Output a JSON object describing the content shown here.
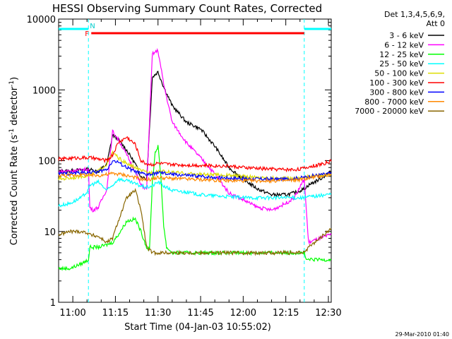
{
  "chart_data": {
    "type": "line",
    "title": "HESSI Observing Summary Count Rates, Corrected",
    "xlabel": "Start Time (04-Jan-03 10:55:02)",
    "ylabel_main": "Corrected Count Rate (s",
    "ylabel_sup1": "-1",
    "ylabel_mid": " detector",
    "ylabel_sup2": "-1",
    "ylabel_end": ")",
    "yscale": "log",
    "ylim": [
      1,
      10000
    ],
    "xlim_min": [
      0,
      96
    ],
    "y_ticks": [
      {
        "value": 1,
        "label": "1"
      },
      {
        "value": 10,
        "label": "10"
      },
      {
        "value": 100,
        "label": "100"
      },
      {
        "value": 1000,
        "label": "1000"
      },
      {
        "value": 10000,
        "label": "10000"
      }
    ],
    "x_ticks": [
      {
        "t": 5,
        "label": "11:00"
      },
      {
        "t": 20,
        "label": "11:15"
      },
      {
        "t": 35,
        "label": "11:30"
      },
      {
        "t": 50,
        "label": "11:45"
      },
      {
        "t": 65,
        "label": "12:00"
      },
      {
        "t": 80,
        "label": "12:15"
      },
      {
        "t": 95,
        "label": "12:30"
      }
    ],
    "legend_header1": "Det 1,3,4,5,6,9,",
    "legend_header2": "Att 0",
    "flag_labels": {
      "F": "F",
      "N": "N"
    },
    "timestamp": "29-Mar-2010 01:40",
    "night_intervals": [
      [
        0,
        10.5
      ],
      [
        86.5,
        96
      ]
    ],
    "flare_interval": [
      11.5,
      86.5
    ],
    "series": [
      {
        "name": "3 - 6 keV",
        "color": "#000000",
        "x": [
          0,
          4,
          8,
          10.5,
          11,
          14,
          17,
          19,
          21,
          24,
          27,
          29,
          31,
          33,
          35,
          37,
          40,
          45,
          50,
          55,
          60,
          65,
          70,
          75,
          80,
          83,
          86.5,
          88,
          92,
          96
        ],
        "y": [
          70,
          72,
          74,
          76,
          75,
          70,
          90,
          230,
          200,
          140,
          90,
          60,
          55,
          1500,
          1800,
          1100,
          600,
          350,
          280,
          160,
          80,
          55,
          40,
          33,
          33,
          35,
          40,
          45,
          55,
          70
        ]
      },
      {
        "name": "6 - 12 keV",
        "color": "#ff00ff",
        "x": [
          0,
          4,
          8,
          10.5,
          11,
          12,
          14,
          17,
          19,
          21,
          24,
          27,
          29,
          31,
          33,
          35,
          37,
          40,
          45,
          50,
          55,
          60,
          65,
          70,
          75,
          80,
          83,
          86.5,
          88,
          92,
          96
        ],
        "y": [
          70,
          72,
          74,
          76,
          22,
          20,
          22,
          40,
          260,
          200,
          120,
          70,
          45,
          40,
          3200,
          3600,
          1200,
          350,
          180,
          110,
          65,
          35,
          28,
          22,
          20,
          25,
          30,
          55,
          7,
          8,
          9
        ]
      },
      {
        "name": "12 - 25 keV",
        "color": "#00ff00",
        "x": [
          0,
          4,
          8,
          10.5,
          11,
          14,
          17,
          19,
          21,
          24,
          27,
          29,
          31,
          32,
          33,
          34,
          35,
          36,
          37,
          38,
          40,
          45,
          50,
          55,
          60,
          65,
          70,
          75,
          80,
          83,
          86.5,
          87,
          90,
          96
        ],
        "y": [
          3,
          3,
          3.5,
          4,
          6,
          6,
          6.5,
          7,
          9,
          14,
          15,
          10,
          6,
          5.5,
          50,
          130,
          160,
          60,
          12,
          6,
          5,
          5,
          5,
          5,
          5,
          5,
          5,
          5,
          5,
          5,
          5,
          4,
          4,
          4
        ]
      },
      {
        "name": "25 - 50 keV",
        "color": "#00ffff",
        "x": [
          0,
          4,
          8,
          10.5,
          11,
          14,
          17,
          19,
          21,
          24,
          27,
          29,
          31,
          33,
          35,
          37,
          40,
          45,
          50,
          55,
          60,
          65,
          70,
          75,
          80,
          83,
          86.5,
          88,
          92,
          96
        ],
        "y": [
          23,
          25,
          30,
          38,
          45,
          50,
          38,
          45,
          55,
          52,
          47,
          44,
          42,
          44,
          50,
          44,
          38,
          36,
          33,
          32,
          31,
          30,
          30,
          30,
          30,
          30,
          30,
          31,
          32,
          34
        ]
      },
      {
        "name": "50 - 100 keV",
        "color": "#dddd00",
        "x": [
          0,
          4,
          8,
          10.5,
          11,
          14,
          17,
          19,
          21,
          24,
          27,
          29,
          31,
          33,
          35,
          37,
          40,
          45,
          50,
          55,
          60,
          65,
          70,
          75,
          80,
          83,
          86.5,
          88,
          92,
          96
        ],
        "y": [
          55,
          57,
          60,
          62,
          62,
          72,
          90,
          130,
          110,
          90,
          80,
          72,
          68,
          68,
          72,
          70,
          68,
          66,
          64,
          63,
          62,
          60,
          58,
          57,
          56,
          56,
          58,
          60,
          62,
          65
        ]
      },
      {
        "name": "100 - 300 keV",
        "color": "#ff0000",
        "x": [
          0,
          4,
          8,
          10.5,
          11,
          14,
          17,
          19,
          21,
          24,
          27,
          29,
          31,
          33,
          35,
          37,
          40,
          45,
          50,
          55,
          60,
          65,
          70,
          75,
          80,
          83,
          86.5,
          88,
          92,
          96
        ],
        "y": [
          105,
          108,
          110,
          110,
          110,
          105,
          100,
          120,
          180,
          215,
          170,
          100,
          90,
          88,
          92,
          90,
          88,
          87,
          86,
          85,
          84,
          80,
          78,
          76,
          75,
          75,
          78,
          82,
          88,
          98
        ]
      },
      {
        "name": "300 - 800 keV",
        "color": "#0000ff",
        "x": [
          0,
          4,
          8,
          10.5,
          11,
          14,
          17,
          19,
          21,
          24,
          27,
          29,
          31,
          33,
          35,
          37,
          40,
          45,
          50,
          55,
          60,
          65,
          70,
          75,
          80,
          83,
          86.5,
          88,
          92,
          96
        ],
        "y": [
          65,
          66,
          68,
          68,
          68,
          70,
          75,
          100,
          95,
          80,
          70,
          66,
          64,
          64,
          68,
          66,
          64,
          62,
          60,
          58,
          57,
          56,
          55,
          55,
          55,
          56,
          58,
          60,
          63,
          66
        ]
      },
      {
        "name": "800 - 7000 keV",
        "color": "#ff8800",
        "x": [
          0,
          4,
          8,
          10.5,
          11,
          14,
          17,
          19,
          21,
          24,
          27,
          29,
          31,
          33,
          35,
          37,
          40,
          45,
          50,
          55,
          60,
          65,
          70,
          75,
          80,
          83,
          86.5,
          88,
          92,
          96
        ],
        "y": [
          62,
          62,
          63,
          63,
          62,
          62,
          64,
          66,
          65,
          62,
          58,
          55,
          54,
          55,
          58,
          57,
          56,
          55,
          54,
          53,
          52,
          52,
          52,
          52,
          52,
          53,
          55,
          57,
          60,
          64
        ]
      },
      {
        "name": "7000 - 20000 keV",
        "color": "#886600",
        "x": [
          0,
          4,
          8,
          10.5,
          11,
          14,
          17,
          19,
          21,
          24,
          27,
          29,
          31,
          33,
          35,
          37,
          40,
          45,
          50,
          55,
          60,
          65,
          70,
          75,
          80,
          83,
          86.5,
          88,
          92,
          96
        ],
        "y": [
          9,
          10,
          10,
          9.5,
          9,
          8.5,
          7,
          8,
          14,
          30,
          38,
          20,
          6,
          5,
          5,
          5,
          5,
          5,
          5,
          5,
          5,
          5,
          5,
          5,
          5,
          5,
          5,
          6,
          8,
          11
        ]
      }
    ]
  }
}
